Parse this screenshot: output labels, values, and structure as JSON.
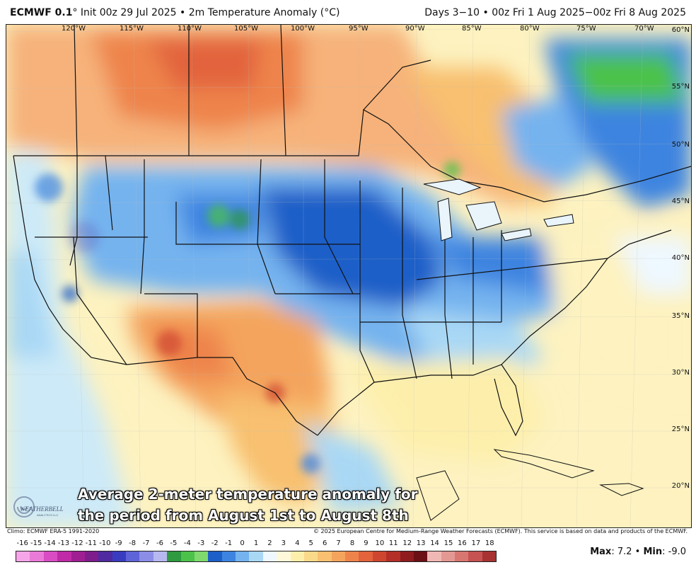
{
  "header": {
    "model": "ECMWF 0.1",
    "degree": "°",
    "init": "Init 00z 29 Jul 2025",
    "bullet": "•",
    "field": "2m Temperature Anomaly (°C)",
    "range": "Days 3−10 • 00z Fri 1 Aug 2025−00z Fri 8 Aug 2025"
  },
  "map": {
    "lon_labels": [
      "120°W",
      "115°W",
      "110°W",
      "105°W",
      "100°W",
      "95°W",
      "90°W",
      "85°W",
      "80°W",
      "75°W",
      "70°W"
    ],
    "lat_labels": [
      "60°N",
      "55°N",
      "50°N",
      "45°N",
      "40°N",
      "35°N",
      "30°N",
      "25°N",
      "20°N"
    ],
    "caption_line1": "Average 2-meter temperature anomaly for",
    "caption_line2": "the period from August 1st to August 8th",
    "logo_text": "WEATHERBELL",
    "logo_subtext": "ANALYTICS LLC"
  },
  "footer": {
    "climo": "Climo: ECMWF ERA-5 1991-2020",
    "copyright": "© 2025 European Centre for Medium-Range Weather Forecasts (ECMWF). This service is based on data and products of the ECMWF."
  },
  "colorbar": {
    "ticks": [
      "-16",
      "-15",
      "-14",
      "-13",
      "-12",
      "-11",
      "-10",
      "-9",
      "-8",
      "-7",
      "-6",
      "-5",
      "-4",
      "-3",
      "-2",
      "-1",
      "0",
      "1",
      "2",
      "3",
      "4",
      "5",
      "6",
      "7",
      "8",
      "9",
      "10",
      "11",
      "12",
      "13",
      "14",
      "15",
      "16",
      "17",
      "18"
    ],
    "colors": [
      "#f6a6e8",
      "#ea7ad8",
      "#d94cc3",
      "#c02aa8",
      "#9f1f92",
      "#7e1d8c",
      "#4f2aa0",
      "#3a3cc0",
      "#5e63d8",
      "#8c8de6",
      "#b7b8f0",
      "#2f9a3f",
      "#4cc24a",
      "#7fd96d",
      "#1d5fc8",
      "#3d84e0",
      "#74b3ef",
      "#a9d8f5",
      "#eef8ff",
      "#fff9d9",
      "#fdefab",
      "#fbd98a",
      "#f8c070",
      "#f4a45d",
      "#ee844c",
      "#e2633c",
      "#cf4630",
      "#b32f28",
      "#8f1c1e",
      "#6b1015",
      "#f0b8b4",
      "#e49893",
      "#d87671",
      "#c65252",
      "#a83232"
    ]
  },
  "stats": {
    "max_label": "Max",
    "max_value": "7.2",
    "min_label": "Min",
    "min_value": "-9.0"
  }
}
